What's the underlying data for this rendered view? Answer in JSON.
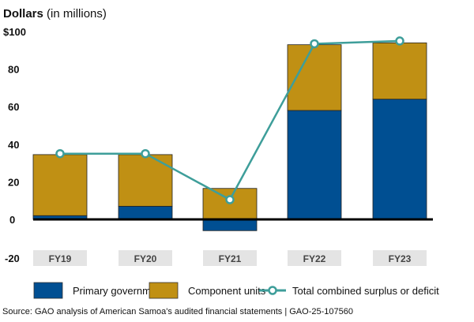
{
  "chart_data": {
    "type": "bar",
    "stacked": true,
    "title": "Dollars",
    "title_suffix": "(in millions)",
    "categories": [
      "FY19",
      "FY20",
      "FY21",
      "FY22",
      "FY23"
    ],
    "series": [
      {
        "name": "Primary government",
        "kind": "bar",
        "color": "#004F92",
        "values": [
          2,
          7,
          -6,
          58,
          64
        ]
      },
      {
        "name": "Component units",
        "kind": "bar",
        "color": "#C09014",
        "values": [
          32.5,
          27.5,
          16.5,
          35,
          30
        ]
      },
      {
        "name": "Total combined surplus or deficit",
        "kind": "line",
        "color": "#3E9E9A",
        "values": [
          35,
          35,
          10.5,
          93.5,
          95
        ]
      }
    ],
    "y_ticks": [
      100,
      80,
      60,
      40,
      20,
      0,
      -20
    ],
    "y_tick_labels": [
      "$100",
      "80",
      "60",
      "40",
      "20",
      "0",
      "-20"
    ],
    "ylim": [
      -20,
      100
    ],
    "grid": false,
    "legend": "bottom",
    "source": "Source: GAO analysis of American Samoa's audited financial statements  |  GAO-25-107560"
  }
}
